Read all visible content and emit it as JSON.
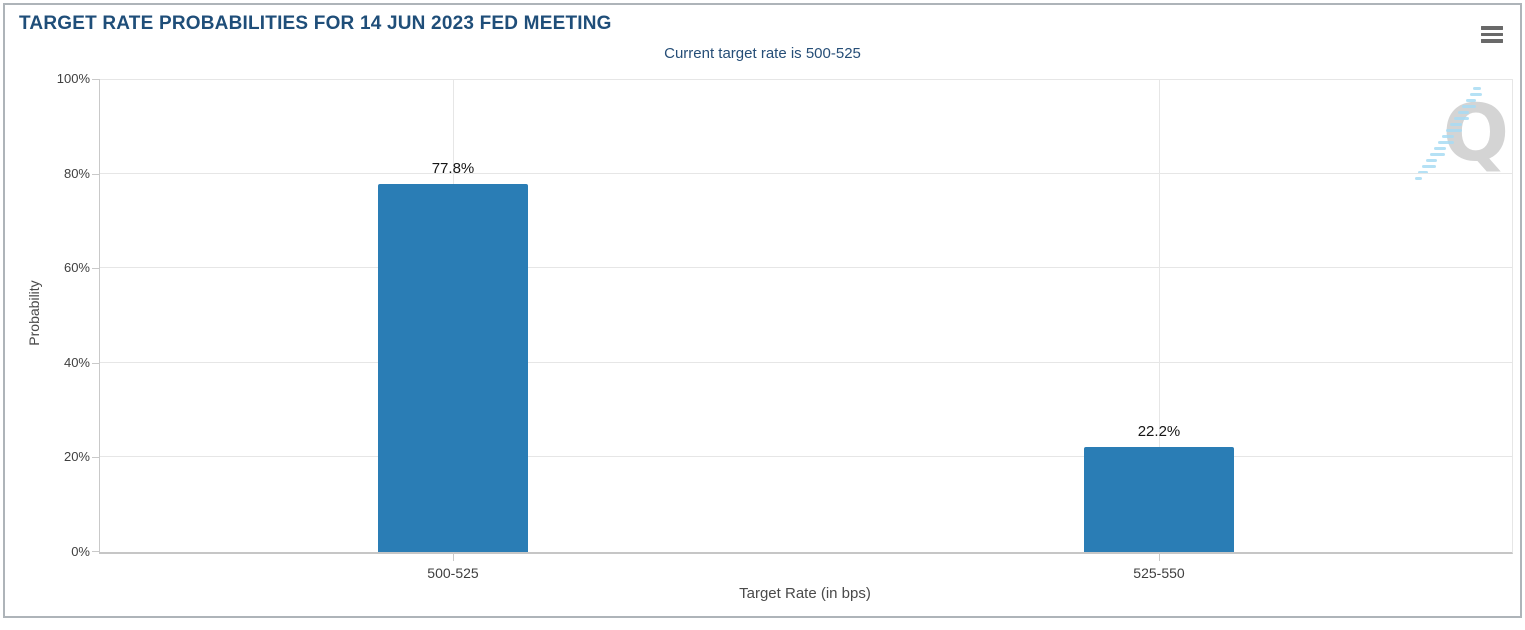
{
  "header": {
    "title": "TARGET RATE PROBABILITIES FOR 14 JUN 2023 FED MEETING",
    "menu_icon": "hamburger"
  },
  "chart_data": {
    "type": "bar",
    "title": "TARGET RATE PROBABILITIES FOR 14 JUN 2023 FED MEETING",
    "subtitle": "Current target rate is 500-525",
    "categories": [
      "500-525",
      "525-550"
    ],
    "values": [
      77.8,
      22.2
    ],
    "data_labels": [
      "77.8%",
      "22.2%"
    ],
    "xlabel": "Target Rate (in bps)",
    "ylabel": "Probability",
    "ylim": [
      0,
      100
    ],
    "ytick_step": 20,
    "ytick_labels": [
      "0%",
      "20%",
      "40%",
      "60%",
      "80%",
      "100%"
    ],
    "grid": true,
    "legend": "none",
    "bar_color": "#2a7db5",
    "title_color": "#1f4e79",
    "watermark_letter": "Q"
  }
}
